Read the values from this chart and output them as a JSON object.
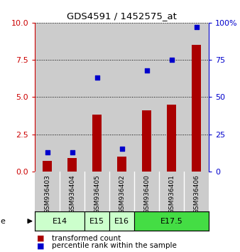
{
  "title": "GDS4591 / 1452575_at",
  "samples": [
    "GSM936403",
    "GSM936404",
    "GSM936405",
    "GSM936402",
    "GSM936400",
    "GSM936401",
    "GSM936406"
  ],
  "transformed_count": [
    0.7,
    0.9,
    3.8,
    1.0,
    4.1,
    4.5,
    8.5
  ],
  "percentile_rank": [
    13,
    13,
    63,
    15,
    68,
    75,
    97
  ],
  "age_groups": [
    {
      "label": "E14",
      "start": 0,
      "end": 2,
      "color": "#ccffcc"
    },
    {
      "label": "E15",
      "start": 2,
      "end": 3,
      "color": "#ccffcc"
    },
    {
      "label": "E16",
      "start": 3,
      "end": 4,
      "color": "#ccffcc"
    },
    {
      "label": "E17.5",
      "start": 4,
      "end": 7,
      "color": "#44dd44"
    }
  ],
  "bar_color": "#aa0000",
  "dot_color": "#0000cc",
  "left_yticks": [
    0,
    2.5,
    5,
    7.5,
    10
  ],
  "right_yticks": [
    0,
    25,
    50,
    75,
    100
  ],
  "left_ylim": [
    0,
    10
  ],
  "right_ylim": [
    0,
    100
  ],
  "left_axis_color": "#cc0000",
  "right_axis_color": "#0000cc",
  "sample_bg_color": "#cccccc",
  "legend_red": "transformed count",
  "legend_blue": "percentile rank within the sample"
}
